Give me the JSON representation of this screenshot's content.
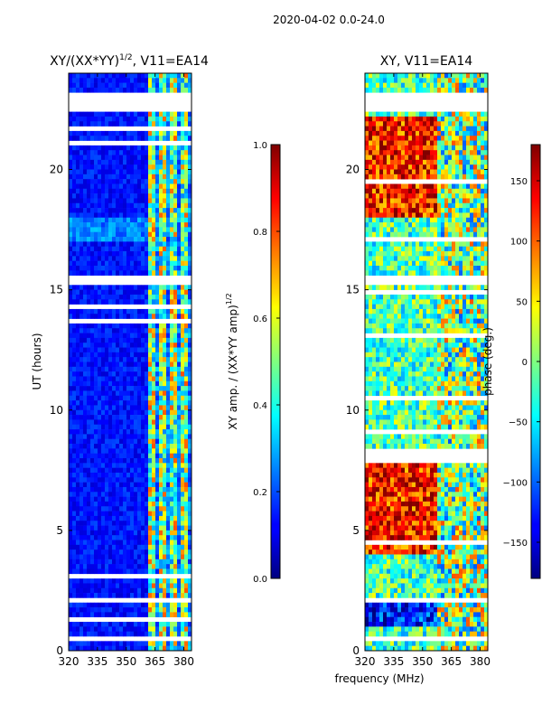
{
  "figure": {
    "suptitle": "2020-04-02 0.0-24.0",
    "xlabel_shared": "frequency (MHz)"
  },
  "chart_data": [
    {
      "type": "heatmap",
      "title": "XY/(XX*YY)^1/2, V11=EA14",
      "title_main": "XY/(XX*YY)",
      "title_exp": "1/2",
      "title_suffix": ", V11=EA14",
      "xlabel": "",
      "ylabel": "UT (hours)",
      "xlim": [
        320,
        384
      ],
      "ylim": [
        0,
        24
      ],
      "x_ticks": [
        320,
        335,
        350,
        365,
        380
      ],
      "y_ticks": [
        0,
        5,
        10,
        15,
        20
      ],
      "colorbar": {
        "label": "XY amp. / (XX*YY amp)^1/2",
        "label_main": "XY amp. / (XX*YY amp)",
        "label_exp": "1/2",
        "range": [
          0.0,
          1.0
        ],
        "ticks": [
          "0.0",
          "0.2",
          "0.4",
          "0.6",
          "0.8",
          "1.0"
        ],
        "tick_values": [
          0.0,
          0.2,
          0.4,
          0.6,
          0.8,
          1.0
        ]
      },
      "colormap": "jet",
      "blank_hour_bands": [
        [
          22.5,
          23.2
        ],
        [
          15.2,
          15.6
        ],
        [
          2.0,
          2.3
        ],
        [
          0.4,
          0.55
        ]
      ]
    },
    {
      "type": "heatmap",
      "title": "XY, V11=EA14",
      "xlabel": "frequency (MHz)",
      "ylabel": "",
      "xlim": [
        320,
        384
      ],
      "ylim": [
        0,
        24
      ],
      "x_ticks": [
        320,
        335,
        350,
        365,
        380
      ],
      "y_ticks": [
        0,
        5,
        10,
        15,
        20
      ],
      "colorbar": {
        "label": "phase (deg.)",
        "range": [
          -180,
          180
        ],
        "ticks": [
          "−150",
          "−100",
          "−50",
          "0",
          "50",
          "100",
          "150"
        ],
        "tick_values": [
          -150,
          -100,
          -50,
          0,
          50,
          100,
          150
        ]
      },
      "colormap": "jet",
      "blank_hour_bands": [
        [
          22.5,
          23.2
        ],
        [
          15.2,
          15.6
        ],
        [
          2.0,
          2.3
        ],
        [
          0.4,
          0.55
        ]
      ]
    }
  ]
}
